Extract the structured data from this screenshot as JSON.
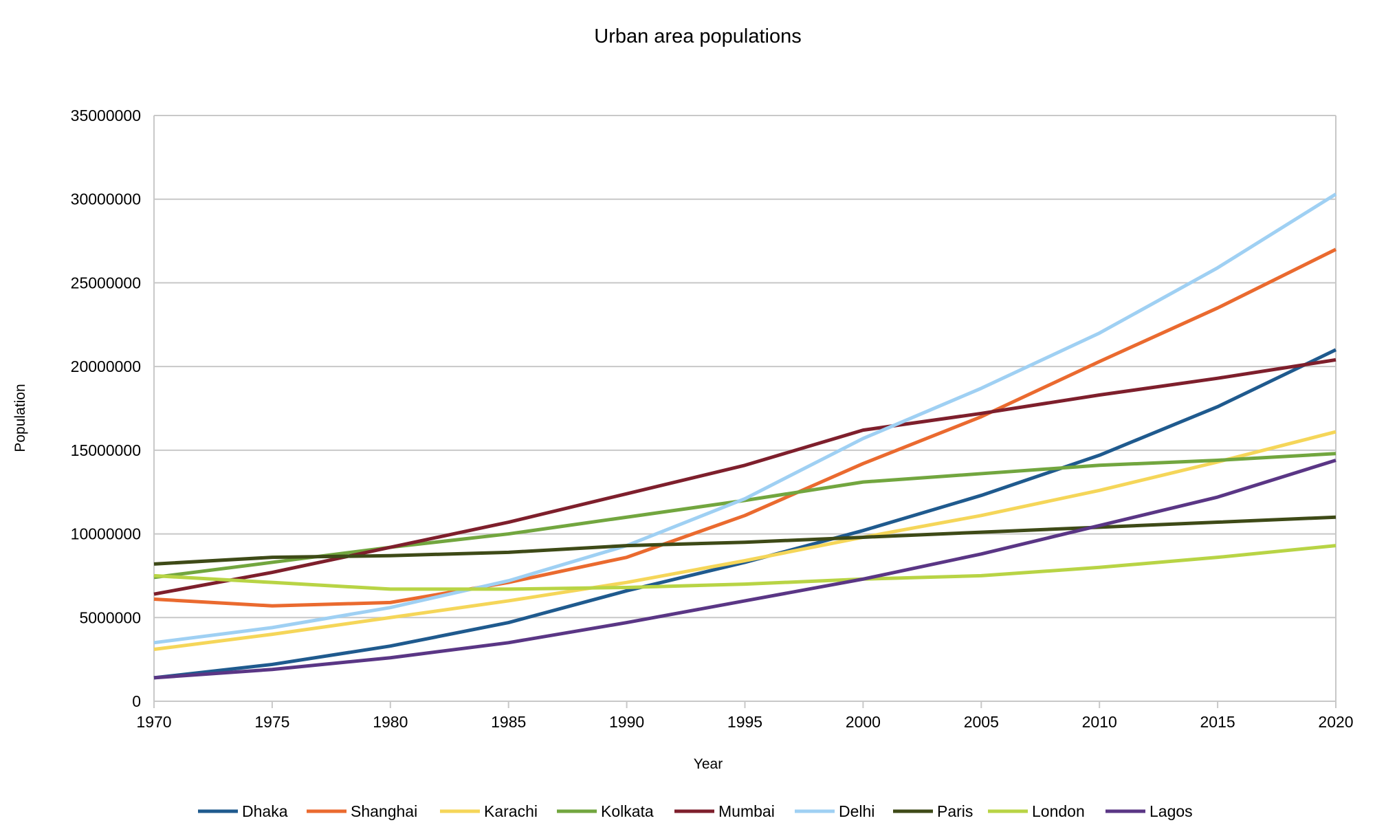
{
  "chart_data": {
    "type": "line",
    "title": "Urban area populations",
    "xlabel": "Year",
    "ylabel": "Population",
    "x": [
      1970,
      1975,
      1980,
      1985,
      1990,
      1995,
      2000,
      2005,
      2010,
      2015,
      2020
    ],
    "xlim": [
      1970,
      2020
    ],
    "ylim": [
      0,
      35000000
    ],
    "yticks": [
      "0",
      "5000000",
      "10000000",
      "15000000",
      "20000000",
      "25000000",
      "30000000",
      "35000000"
    ],
    "xticks": [
      "1970",
      "1975",
      "1980",
      "1985",
      "1990",
      "1995",
      "2000",
      "2005",
      "2010",
      "2015",
      "2020"
    ],
    "grid": true,
    "legend_position": "bottom",
    "series": [
      {
        "name": "Dhaka",
        "color": "#1f5a8e",
        "values": [
          1400000,
          2200000,
          3300000,
          4700000,
          6600000,
          8300000,
          10200000,
          12300000,
          14700000,
          17600000,
          21000000
        ]
      },
      {
        "name": "Shanghai",
        "color": "#ea6a2f",
        "values": [
          6100000,
          5700000,
          5900000,
          7100000,
          8600000,
          11100000,
          14200000,
          17000000,
          20300000,
          23500000,
          27000000
        ]
      },
      {
        "name": "Karachi",
        "color": "#f5d659",
        "values": [
          3100000,
          4000000,
          5000000,
          6000000,
          7100000,
          8400000,
          9800000,
          11100000,
          12600000,
          14300000,
          16100000
        ]
      },
      {
        "name": "Kolkata",
        "color": "#72a63f",
        "values": [
          7400000,
          8300000,
          9200000,
          10000000,
          11000000,
          12000000,
          13100000,
          13600000,
          14100000,
          14400000,
          14800000
        ]
      },
      {
        "name": "Mumbai",
        "color": "#7e1f2c",
        "values": [
          6400000,
          7700000,
          9200000,
          10700000,
          12400000,
          14100000,
          16200000,
          17200000,
          18300000,
          19300000,
          20400000
        ]
      },
      {
        "name": "Delhi",
        "color": "#9fd0f3",
        "values": [
          3500000,
          4400000,
          5600000,
          7200000,
          9300000,
          12100000,
          15700000,
          18700000,
          22000000,
          25900000,
          30300000
        ]
      },
      {
        "name": "Paris",
        "color": "#3e4a17",
        "values": [
          8200000,
          8600000,
          8700000,
          8900000,
          9300000,
          9500000,
          9800000,
          10100000,
          10400000,
          10700000,
          11000000
        ]
      },
      {
        "name": "London",
        "color": "#b8d445",
        "values": [
          7500000,
          7100000,
          6700000,
          6700000,
          6800000,
          7000000,
          7300000,
          7500000,
          8000000,
          8600000,
          9300000
        ]
      },
      {
        "name": "Lagos",
        "color": "#5a3685",
        "values": [
          1400000,
          1900000,
          2600000,
          3500000,
          4700000,
          6000000,
          7300000,
          8800000,
          10500000,
          12200000,
          14400000
        ]
      }
    ]
  }
}
